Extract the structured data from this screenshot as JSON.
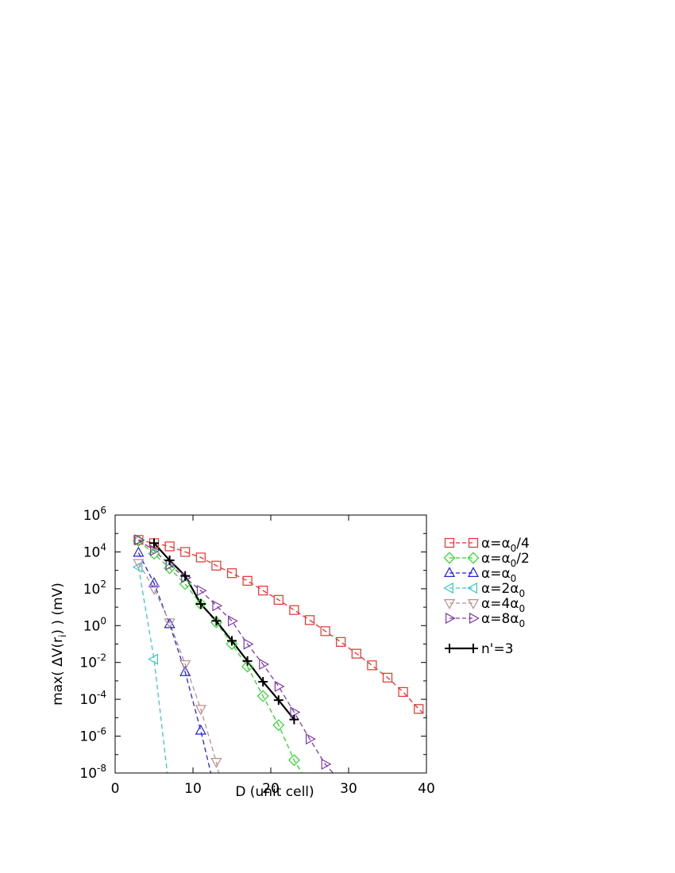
{
  "chart_data": {
    "type": "line",
    "xlabel": "D   (unit cell)",
    "ylabel": "max( ΔV(r_i) )   (mV)",
    "xlim": [
      0,
      40
    ],
    "ylim": [
      1e-08,
      1000000.0
    ],
    "yscale": "log",
    "xticks": [
      0,
      10,
      20,
      30,
      40
    ],
    "yticks": [
      {
        "base": "10",
        "exp": "-8",
        "value": 1e-08
      },
      {
        "base": "10",
        "exp": "-6",
        "value": 1e-06
      },
      {
        "base": "10",
        "exp": "-4",
        "value": 0.0001
      },
      {
        "base": "10",
        "exp": "-2",
        "value": 0.01
      },
      {
        "base": "10",
        "exp": "0",
        "value": 1
      },
      {
        "base": "10",
        "exp": "2",
        "value": 100
      },
      {
        "base": "10",
        "exp": "4",
        "value": 10000
      },
      {
        "base": "10",
        "exp": "6",
        "value": 1000000
      }
    ],
    "grid": false,
    "legend_position": "outside-right",
    "series": [
      {
        "name": "α=α0/4",
        "label_parts": {
          "pre": "α=α",
          "sub": "0",
          "post": "/4"
        },
        "color": "#e8312f",
        "marker": "square",
        "dashed": true,
        "x": [
          3,
          5,
          7,
          9,
          11,
          13,
          15,
          17,
          19,
          21,
          23,
          25,
          27,
          29,
          31,
          33,
          35,
          37,
          39
        ],
        "y": [
          45000,
          30000,
          20000,
          10000,
          5000,
          1800,
          700,
          270,
          80,
          25,
          7,
          2,
          0.5,
          0.13,
          0.03,
          0.007,
          0.0015,
          0.00025,
          3e-05
        ],
        "line_x": [
          3,
          40
        ],
        "line_y_end": 1.2e-05
      },
      {
        "name": "α=α0/2",
        "label_parts": {
          "pre": "α=α",
          "sub": "0",
          "post": "/2"
        },
        "color": "#2fd42f",
        "marker": "diamond",
        "dashed": true,
        "x": [
          3,
          5,
          7,
          9,
          11,
          13,
          15,
          17,
          19,
          21,
          23
        ],
        "y": [
          40000,
          8000,
          1300,
          180,
          15,
          1.5,
          0.1,
          0.006,
          0.00015,
          4e-06,
          5e-08
        ],
        "line_x": [
          3,
          24
        ],
        "line_y_end": 1e-08
      },
      {
        "name": "α=α0",
        "label_parts": {
          "pre": "α=α",
          "sub": "0",
          "post": ""
        },
        "color": "#2222dd",
        "marker": "triangle-up",
        "dashed": true,
        "x": [
          3,
          5,
          7,
          9,
          11
        ],
        "y": [
          9000,
          200,
          1.2,
          0.003,
          2e-06
        ],
        "line_x": [
          3,
          12.3
        ],
        "line_y_end": 1e-08
      },
      {
        "name": "α=2α0",
        "label_parts": {
          "pre": "α=2α",
          "sub": "0",
          "post": ""
        },
        "color": "#3cc8c8",
        "marker": "triangle-left",
        "dashed": true,
        "x": [
          3,
          5
        ],
        "y": [
          1500,
          0.015
        ],
        "line_x": [
          3,
          6.7
        ],
        "line_y_end": 1e-08
      },
      {
        "name": "α=4α0",
        "label_parts": {
          "pre": "α=4α",
          "sub": "0",
          "post": ""
        },
        "color": "#b8908c",
        "marker": "triangle-down",
        "dashed": true,
        "x": [
          3,
          5,
          7,
          9,
          11,
          13
        ],
        "y": [
          2500,
          100,
          1.5,
          0.008,
          3e-05,
          4e-08
        ],
        "line_x": [
          3,
          13.3
        ],
        "line_y_end": 1e-08
      },
      {
        "name": "α=8α0",
        "label_parts": {
          "pre": "α=8α",
          "sub": "0",
          "post": ""
        },
        "color": "#7c3aa8",
        "marker": "triangle-right",
        "dashed": true,
        "x": [
          3,
          5,
          7,
          9,
          11,
          13,
          15,
          17,
          19,
          21,
          23,
          25,
          27
        ],
        "y": [
          45000,
          12000,
          2000,
          400,
          80,
          12,
          1.8,
          0.1,
          0.008,
          0.0005,
          2e-05,
          7e-07,
          3e-08
        ],
        "line_x": [
          3,
          28
        ],
        "line_y_end": 1e-08
      },
      {
        "name": "n'=3",
        "label_parts": {
          "pre": "n'=3",
          "sub": "",
          "post": ""
        },
        "color": "#000000",
        "marker": "plus",
        "dashed": false,
        "x": [
          5,
          7,
          9,
          11,
          13,
          15,
          17,
          19,
          21,
          23
        ],
        "y": [
          30000,
          3500,
          500,
          15,
          1.8,
          0.15,
          0.012,
          0.0009,
          9e-05,
          8e-06
        ],
        "line_x": null,
        "line_y_end": null
      }
    ]
  }
}
